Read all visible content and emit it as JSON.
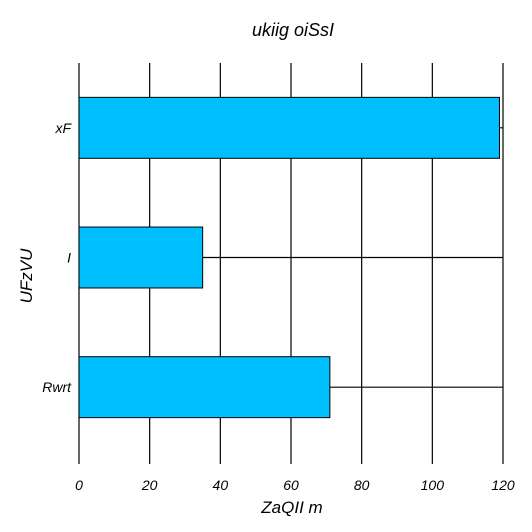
{
  "chart_data": {
    "type": "bar",
    "orientation": "horizontal",
    "title": "ukiig oiSsI",
    "xlabel": "ZaQII m",
    "ylabel": "UFzVU",
    "categories": [
      "Rwrt",
      "I",
      "xF"
    ],
    "values": [
      71,
      35,
      119
    ],
    "xlim": [
      0,
      120
    ],
    "xticks": [
      0,
      20,
      40,
      60,
      80,
      100,
      120
    ],
    "grid": true,
    "bar_color": "#00bfff",
    "edge_color": "#000000"
  }
}
